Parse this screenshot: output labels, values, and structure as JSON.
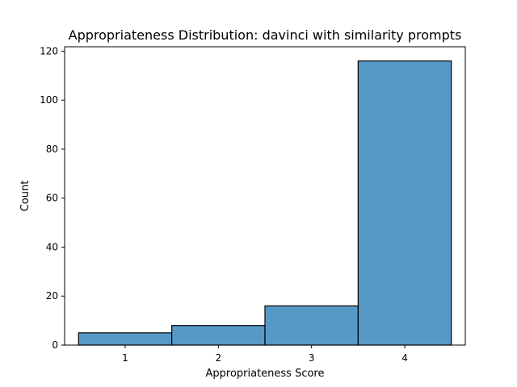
{
  "chart_data": {
    "type": "bar",
    "title": "Appropriateness Distribution: davinci with similarity prompts",
    "xlabel": "Appropriateness Score",
    "ylabel": "Count",
    "categories": [
      "1",
      "2",
      "3",
      "4"
    ],
    "values": [
      5,
      8,
      16,
      116
    ],
    "ylim": [
      0,
      121.8
    ],
    "xlim": [
      0.35,
      4.65
    ],
    "yticks": [
      0,
      20,
      40,
      60,
      80,
      100,
      120
    ],
    "grid": false,
    "legend": "none",
    "colors": {
      "bar_fill": "#5799c6",
      "bar_edge": "#000000"
    }
  }
}
